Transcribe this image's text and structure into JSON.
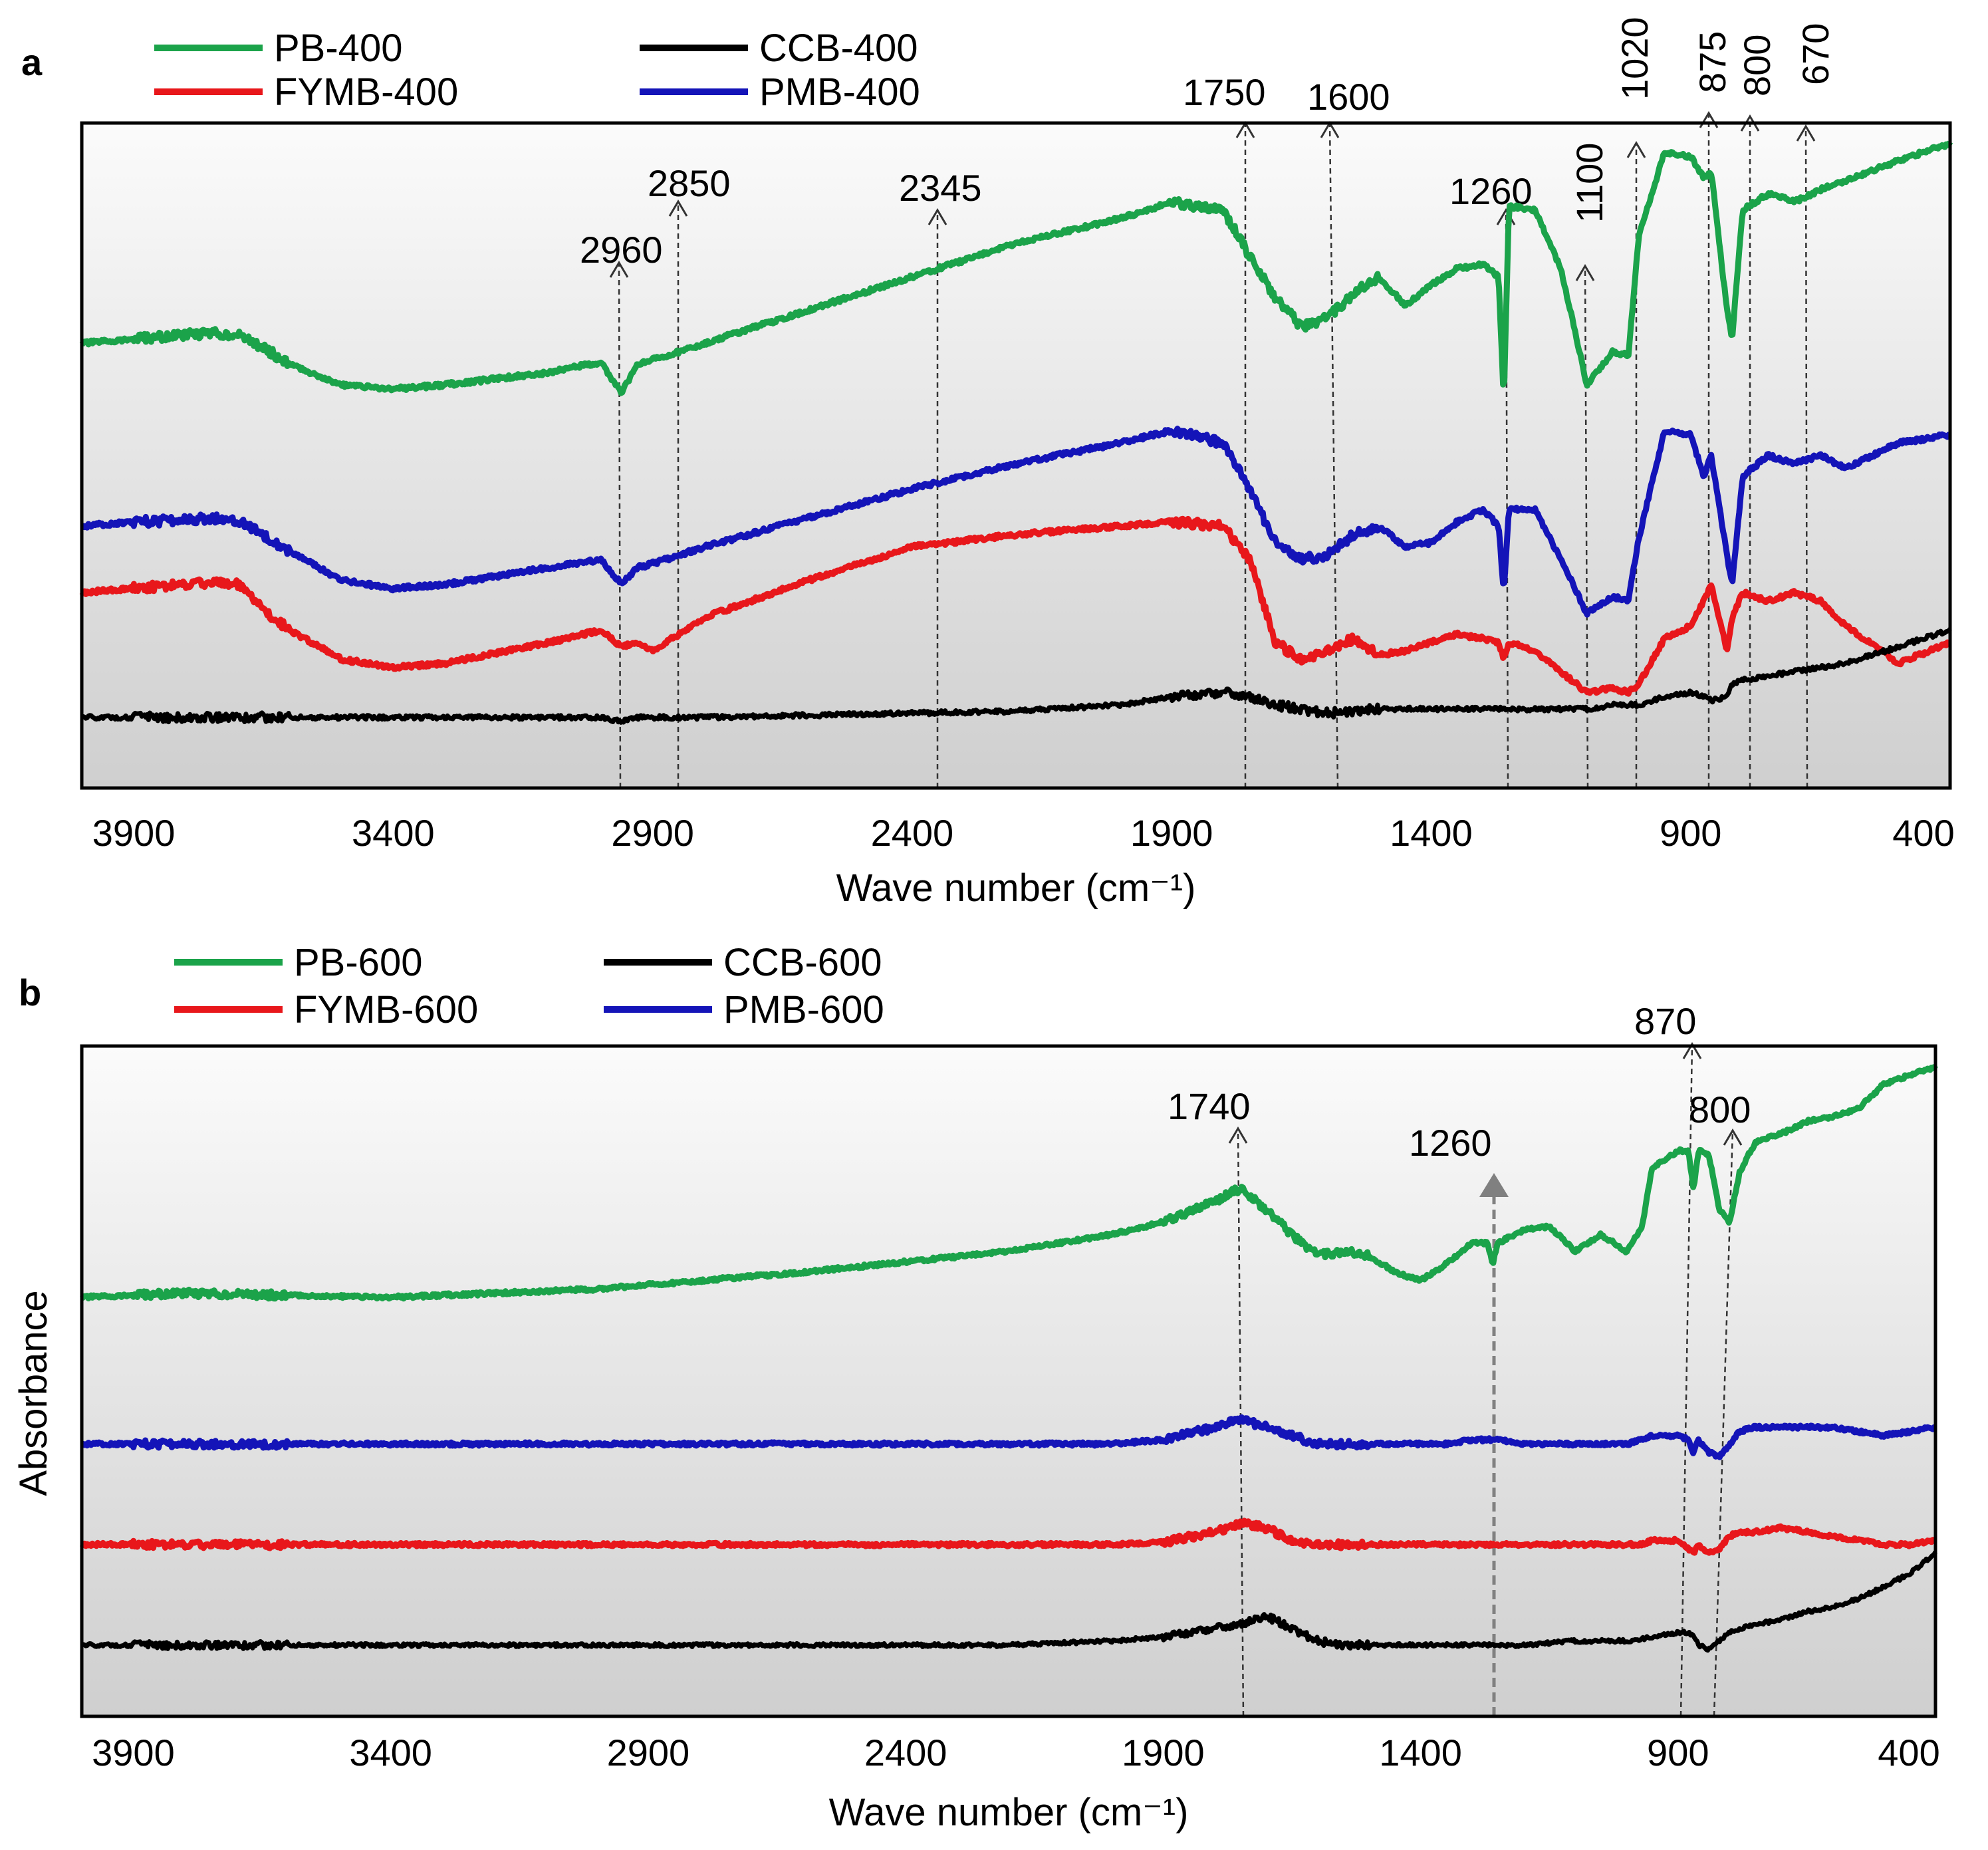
{
  "chart_data": [
    {
      "panel": "a",
      "type": "line",
      "xlabel": "Wave number (cm⁻¹)",
      "xlim": [
        4000,
        400
      ],
      "xticks": [
        "3900",
        "3400",
        "2900",
        "2400",
        "1900",
        "1400",
        "900",
        "400"
      ],
      "x": [
        4000,
        3900,
        3800,
        3750,
        3700,
        3650,
        3600,
        3500,
        3400,
        3300,
        3100,
        3000,
        2960,
        2930,
        2900,
        2850,
        2800,
        2600,
        2400,
        2200,
        2000,
        1900,
        1800,
        1750,
        1700,
        1650,
        1600,
        1550,
        1500,
        1450,
        1400,
        1350,
        1300,
        1270,
        1260,
        1250,
        1200,
        1150,
        1100,
        1050,
        1020,
        1000,
        950,
        900,
        875,
        860,
        830,
        820,
        800,
        750,
        700,
        650,
        600,
        500,
        400
      ],
      "series": [
        {
          "name": "PB-400",
          "color": "#1ba34a",
          "line_width": 9,
          "values": [
            0.52,
            0.53,
            0.54,
            0.545,
            0.54,
            0.51,
            0.47,
            0.42,
            0.41,
            0.42,
            0.45,
            0.475,
            0.4,
            0.47,
            0.48,
            0.5,
            0.52,
            0.6,
            0.68,
            0.76,
            0.82,
            0.86,
            0.84,
            0.73,
            0.63,
            0.56,
            0.58,
            0.64,
            0.68,
            0.61,
            0.66,
            0.7,
            0.71,
            0.68,
            0.38,
            0.85,
            0.84,
            0.7,
            0.42,
            0.5,
            0.49,
            0.78,
            0.98,
            0.97,
            0.92,
            0.93,
            0.6,
            0.53,
            0.84,
            0.88,
            0.86,
            0.89,
            0.91,
            0.96,
            1.0
          ]
        },
        {
          "name": "PMB-400",
          "color": "#1414b8",
          "line_width": 9,
          "values": [
            0.08,
            0.09,
            0.095,
            0.1,
            0.095,
            0.06,
            0.02,
            -0.05,
            -0.07,
            -0.06,
            -0.02,
            0.0,
            -0.06,
            -0.02,
            -0.01,
            0.01,
            0.03,
            0.1,
            0.17,
            0.23,
            0.28,
            0.31,
            0.28,
            0.17,
            0.04,
            0.0,
            0.01,
            0.06,
            0.08,
            0.03,
            0.04,
            0.09,
            0.12,
            0.08,
            -0.08,
            0.12,
            0.12,
            0.0,
            -0.13,
            -0.09,
            -0.1,
            0.05,
            0.31,
            0.3,
            0.2,
            0.25,
            0.01,
            -0.06,
            0.2,
            0.25,
            0.23,
            0.25,
            0.22,
            0.28,
            0.3
          ]
        },
        {
          "name": "FYMB-400",
          "color": "#e8171b",
          "line_width": 9,
          "values": [
            -0.08,
            -0.07,
            -0.06,
            -0.055,
            -0.06,
            -0.12,
            -0.17,
            -0.24,
            -0.26,
            -0.25,
            -0.2,
            -0.17,
            -0.21,
            -0.2,
            -0.22,
            -0.18,
            -0.14,
            -0.05,
            0.03,
            0.06,
            0.08,
            0.09,
            0.08,
            0.0,
            -0.2,
            -0.24,
            -0.22,
            -0.19,
            -0.23,
            -0.22,
            -0.2,
            -0.18,
            -0.19,
            -0.2,
            -0.24,
            -0.2,
            -0.22,
            -0.27,
            -0.32,
            -0.31,
            -0.32,
            -0.3,
            -0.19,
            -0.16,
            -0.1,
            -0.06,
            -0.22,
            -0.14,
            -0.08,
            -0.1,
            -0.08,
            -0.1,
            -0.16,
            -0.25,
            -0.2
          ]
        },
        {
          "name": "CCB-400",
          "color": "#000000",
          "line_width": 7,
          "values": [
            -0.38,
            -0.38,
            -0.38,
            -0.38,
            -0.38,
            -0.38,
            -0.38,
            -0.38,
            -0.38,
            -0.38,
            -0.38,
            -0.38,
            -0.39,
            -0.38,
            -0.38,
            -0.38,
            -0.38,
            -0.375,
            -0.37,
            -0.365,
            -0.35,
            -0.33,
            -0.32,
            -0.33,
            -0.35,
            -0.36,
            -0.37,
            -0.365,
            -0.36,
            -0.36,
            -0.36,
            -0.36,
            -0.36,
            -0.36,
            -0.36,
            -0.36,
            -0.36,
            -0.36,
            -0.36,
            -0.35,
            -0.35,
            -0.35,
            -0.33,
            -0.32,
            -0.33,
            -0.34,
            -0.33,
            -0.3,
            -0.29,
            -0.28,
            -0.27,
            -0.26,
            -0.25,
            -0.21,
            -0.17
          ]
        }
      ],
      "legend": [
        "PB-400",
        "CCB-400",
        "FYMB-400",
        "PMB-400"
      ],
      "peak_annotations": [
        {
          "label": "2960",
          "x": 2960
        },
        {
          "label": "2850",
          "x": 2850
        },
        {
          "label": "2345",
          "x": 2345
        },
        {
          "label": "1750",
          "x": 1750
        },
        {
          "label": "1600",
          "x": 1600
        },
        {
          "label": "1260",
          "x": 1260
        },
        {
          "label": "1100",
          "x": 1100
        },
        {
          "label": "1020",
          "x": 1020
        },
        {
          "label": "875",
          "x": 875
        },
        {
          "label": "800",
          "x": 800
        },
        {
          "label": "670",
          "x": 670
        }
      ]
    },
    {
      "panel": "b",
      "type": "line",
      "xlabel": "Wave number (cm⁻¹)",
      "ylabel": "Absorbance",
      "xlim": [
        4000,
        400
      ],
      "xticks": [
        "3900",
        "3400",
        "2900",
        "2400",
        "1900",
        "1400",
        "900",
        "400"
      ],
      "x": [
        4000,
        3800,
        3400,
        3000,
        2600,
        2200,
        2000,
        1900,
        1800,
        1750,
        1700,
        1650,
        1600,
        1550,
        1500,
        1450,
        1400,
        1350,
        1300,
        1270,
        1260,
        1250,
        1200,
        1150,
        1100,
        1050,
        1000,
        970,
        950,
        900,
        880,
        870,
        860,
        840,
        820,
        800,
        780,
        750,
        700,
        650,
        600,
        550,
        500,
        450,
        400
      ],
      "series": [
        {
          "name": "PB-600",
          "color": "#1ba34a",
          "line_width": 9,
          "values": [
            0.45,
            0.46,
            0.45,
            0.47,
            0.51,
            0.56,
            0.6,
            0.63,
            0.68,
            0.71,
            0.66,
            0.6,
            0.55,
            0.56,
            0.55,
            0.51,
            0.49,
            0.53,
            0.58,
            0.58,
            0.53,
            0.58,
            0.61,
            0.62,
            0.56,
            0.6,
            0.56,
            0.62,
            0.76,
            0.8,
            0.8,
            0.71,
            0.8,
            0.79,
            0.66,
            0.63,
            0.75,
            0.82,
            0.84,
            0.87,
            0.88,
            0.9,
            0.96,
            0.98,
            1.0
          ]
        },
        {
          "name": "PMB-600",
          "color": "#1414b8",
          "line_width": 9,
          "values": [
            0.1,
            0.1,
            0.1,
            0.1,
            0.1,
            0.1,
            0.1,
            0.11,
            0.14,
            0.16,
            0.14,
            0.12,
            0.1,
            0.1,
            0.1,
            0.1,
            0.1,
            0.1,
            0.11,
            0.11,
            0.11,
            0.11,
            0.1,
            0.1,
            0.1,
            0.1,
            0.1,
            0.11,
            0.12,
            0.12,
            0.11,
            0.08,
            0.11,
            0.08,
            0.07,
            0.1,
            0.13,
            0.14,
            0.14,
            0.14,
            0.14,
            0.13,
            0.12,
            0.13,
            0.14
          ]
        },
        {
          "name": "FYMB-600",
          "color": "#e8171b",
          "line_width": 9,
          "values": [
            -0.14,
            -0.14,
            -0.14,
            -0.14,
            -0.14,
            -0.14,
            -0.14,
            -0.135,
            -0.11,
            -0.09,
            -0.1,
            -0.13,
            -0.14,
            -0.14,
            -0.14,
            -0.14,
            -0.14,
            -0.14,
            -0.14,
            -0.14,
            -0.14,
            -0.14,
            -0.14,
            -0.14,
            -0.14,
            -0.14,
            -0.14,
            -0.14,
            -0.13,
            -0.13,
            -0.15,
            -0.16,
            -0.14,
            -0.16,
            -0.15,
            -0.12,
            -0.11,
            -0.11,
            -0.1,
            -0.11,
            -0.12,
            -0.13,
            -0.14,
            -0.14,
            -0.13
          ]
        },
        {
          "name": "CCB-600",
          "color": "#000000",
          "line_width": 7,
          "values": [
            -0.38,
            -0.38,
            -0.38,
            -0.38,
            -0.38,
            -0.38,
            -0.37,
            -0.36,
            -0.34,
            -0.33,
            -0.31,
            -0.34,
            -0.37,
            -0.38,
            -0.38,
            -0.38,
            -0.38,
            -0.38,
            -0.38,
            -0.38,
            -0.38,
            -0.38,
            -0.38,
            -0.375,
            -0.37,
            -0.37,
            -0.37,
            -0.365,
            -0.36,
            -0.35,
            -0.35,
            -0.36,
            -0.38,
            -0.39,
            -0.37,
            -0.35,
            -0.34,
            -0.33,
            -0.32,
            -0.3,
            -0.29,
            -0.27,
            -0.24,
            -0.21,
            -0.16
          ]
        }
      ],
      "legend": [
        "PB-600",
        "CCB-600",
        "FYMB-600",
        "PMB-600"
      ],
      "peak_annotations": [
        {
          "label": "1740",
          "x": 1740
        },
        {
          "label": "1260",
          "x": 1260
        },
        {
          "label": "870",
          "x": 870
        },
        {
          "label": "800",
          "x": 800
        }
      ]
    }
  ],
  "panels": {
    "a": {
      "letter": "a",
      "legend": {
        "pb": "PB-400",
        "ccb": "CCB-400",
        "fymb": "FYMB-400",
        "pmb": "PMB-400"
      }
    },
    "b": {
      "letter": "b",
      "legend": {
        "pb": "PB-600",
        "ccb": "CCB-600",
        "fymb": "FYMB-600",
        "pmb": "PMB-600"
      }
    }
  },
  "colors": {
    "pb": "#1ba34a",
    "ccb": "#000000",
    "fymb": "#e8171b",
    "pmb": "#1414b8",
    "annotation": "#333333",
    "arrow_b_1260": "#808080"
  }
}
